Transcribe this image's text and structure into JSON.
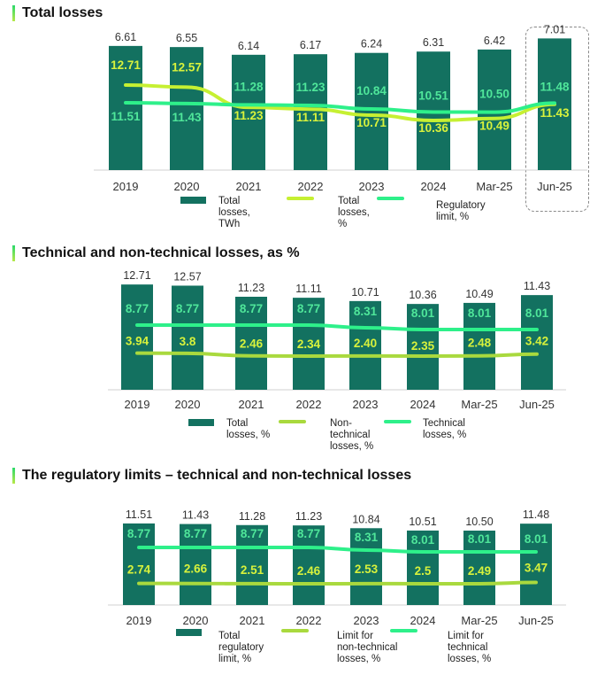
{
  "colors": {
    "bar": "#137160",
    "line_lime": "#c6f032",
    "line_green": "#2ef08a",
    "line_olive": "#a9d93e",
    "label_lime": "#d8f23c",
    "label_green": "#4fe69a",
    "value_top": "#333333",
    "axis": "#d0d0d0"
  },
  "chart_data": [
    {
      "type": "bar",
      "title": "Total losses",
      "categories": [
        "2019",
        "2020",
        "2021",
        "2022",
        "2023",
        "2024",
        "Mar-25",
        "Jun-25"
      ],
      "highlighted_category": "Jun-25",
      "series": [
        {
          "name": "Total losses, TWh",
          "kind": "bar",
          "values": [
            6.61,
            6.55,
            6.14,
            6.17,
            6.24,
            6.31,
            6.42,
            7.01
          ],
          "labels": [
            "6.61",
            "6.55",
            "6.14",
            "6.17",
            "6.24",
            "6.31",
            "6.42",
            "7.01"
          ]
        },
        {
          "name": "Total losses, %",
          "kind": "line",
          "values": [
            12.71,
            12.57,
            11.23,
            11.11,
            10.71,
            10.36,
            10.49,
            11.43
          ],
          "labels": [
            "12.71",
            "12.57",
            "11.23",
            "11.11",
            "10.71",
            "10.36",
            "10.49",
            "11.43"
          ]
        },
        {
          "name": "Regulatory limit, %",
          "kind": "line",
          "values": [
            11.51,
            11.43,
            11.28,
            11.23,
            10.84,
            10.51,
            10.5,
            11.48
          ],
          "labels": [
            "11.51",
            "11.43",
            "11.28",
            "11.23",
            "10.84",
            "10.51",
            "10.50",
            "11.48"
          ]
        }
      ],
      "legend": [
        {
          "label": "Total\nlosses,\nTWh"
        },
        {
          "label": "Total\nlosses,\n%"
        },
        {
          "label": "Regulatory\nlimit, %"
        }
      ],
      "legend_position": "bottom"
    },
    {
      "type": "bar",
      "title": "Technical and non-technical losses, as %",
      "categories": [
        "2019",
        "2020",
        "2021",
        "2022",
        "2023",
        "2024",
        "Mar-25",
        "Jun-25"
      ],
      "series": [
        {
          "name": "Total losses, %",
          "kind": "bar",
          "values": [
            12.71,
            12.57,
            11.23,
            11.11,
            10.71,
            10.36,
            10.49,
            11.43
          ],
          "labels": [
            "12.71",
            "12.57",
            "11.23",
            "11.11",
            "10.71",
            "10.36",
            "10.49",
            "11.43"
          ]
        },
        {
          "name": "Non-technical losses, %",
          "kind": "line",
          "values": [
            3.94,
            3.8,
            2.46,
            2.34,
            2.4,
            2.35,
            2.48,
            3.42
          ],
          "labels": [
            "3.94",
            "3.8",
            "2.46",
            "2.34",
            "2.40",
            "2.35",
            "2.48",
            "3.42"
          ]
        },
        {
          "name": "Technical losses, %",
          "kind": "line",
          "values": [
            8.77,
            8.77,
            8.77,
            8.77,
            8.31,
            8.01,
            8.01,
            8.01
          ],
          "labels": [
            "8.77",
            "8.77",
            "8.77",
            "8.77",
            "8.31",
            "8.01",
            "8.01",
            "8.01"
          ]
        }
      ],
      "legend": [
        {
          "label": "Total\nlosses, %"
        },
        {
          "label": "Non-\ntechnical\nlosses, %"
        },
        {
          "label": "Technical\nlosses,  %"
        }
      ],
      "legend_position": "bottom"
    },
    {
      "type": "bar",
      "title": "The regulatory limits – technical and non-technical losses",
      "categories": [
        "2019",
        "2020",
        "2021",
        "2022",
        "2023",
        "2024",
        "Mar-25",
        "Jun-25"
      ],
      "series": [
        {
          "name": "Total regulatory limit, %",
          "kind": "bar",
          "values": [
            11.51,
            11.43,
            11.28,
            11.23,
            10.84,
            10.51,
            10.5,
            11.48
          ],
          "labels": [
            "11.51",
            "11.43",
            "11.28",
            "11.23",
            "10.84",
            "10.51",
            "10.50",
            "11.48"
          ]
        },
        {
          "name": "Limit for non-technical losses, %",
          "kind": "line",
          "values": [
            2.74,
            2.66,
            2.51,
            2.46,
            2.53,
            2.5,
            2.49,
            3.47
          ],
          "labels": [
            "2.74",
            "2.66",
            "2.51",
            "2.46",
            "2.53",
            "2.5",
            "2.49",
            "3.47"
          ]
        },
        {
          "name": "Limit for technical losses, %",
          "kind": "line",
          "values": [
            8.77,
            8.77,
            8.77,
            8.77,
            8.31,
            8.01,
            8.01,
            8.01
          ],
          "labels": [
            "8.77",
            "8.77",
            "8.77",
            "8.77",
            "8.31",
            "8.01",
            "8.01",
            "8.01"
          ]
        }
      ],
      "legend": [
        {
          "label": "Total\nregulatory\nlimit, %"
        },
        {
          "label": "Limit for\nnon-technical\nlosses, %"
        },
        {
          "label": "Limit for\ntechnical\nlosses, %"
        }
      ],
      "legend_position": "bottom"
    }
  ]
}
